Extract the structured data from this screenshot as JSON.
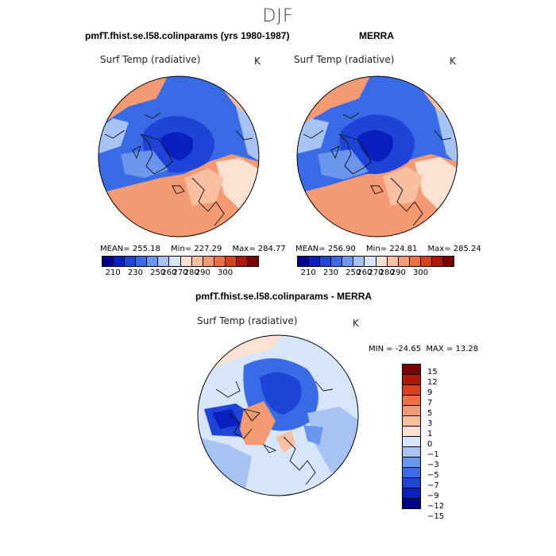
{
  "season": "DJF",
  "panels": {
    "model": {
      "title": "pmfT.fhist.se.l58.colinparams (yrs 1980-1987)",
      "variable": "Surf Temp (radiative)",
      "unit": "K",
      "mean_label": "MEAN=",
      "mean": "255.18",
      "min_label": "Min=",
      "min": "227.29",
      "max_label": "Max=",
      "max": "284.77"
    },
    "merra": {
      "title": "MERRA",
      "variable": "Surf Temp (radiative)",
      "unit": "K",
      "mean_label": "MEAN=",
      "mean": "256.90",
      "min_label": "Min=",
      "min": "224.81",
      "max_label": "Max=",
      "max": "285.24"
    },
    "diff": {
      "title": "pmfT.fhist.se.l58.colinparams - MERRA",
      "variable": "Surf Temp (radiative)",
      "unit": "K",
      "min_label": "MIN =",
      "min": "-24.65",
      "max_label": "MAX =",
      "max": "13.28"
    }
  },
  "abs_colorbar": {
    "colors": [
      "#00008b",
      "#0a1fbf",
      "#1f45d8",
      "#3a6be6",
      "#6a96ee",
      "#a6c3f3",
      "#d6e6f8",
      "#fbe1d1",
      "#f8bfa0",
      "#f39a72",
      "#ec6f45",
      "#d9411d",
      "#b01707",
      "#7c0000"
    ],
    "ticks": [
      "210",
      "230",
      "250",
      "260",
      "270",
      "280",
      "290",
      "300"
    ]
  },
  "diff_colorbar": {
    "colors": [
      "#7c0000",
      "#b01707",
      "#d9411d",
      "#ec6f45",
      "#f39a72",
      "#f8bfa0",
      "#fbe1d1",
      "#d6e6f8",
      "#a6c3f3",
      "#6a96ee",
      "#3a6be6",
      "#1f45d8",
      "#0a1fbf",
      "#00008b"
    ],
    "labels": [
      "15",
      "12",
      "9",
      "7",
      "5",
      "3",
      "1",
      "0",
      "−1",
      "−3",
      "−5",
      "−7",
      "−9",
      "−12",
      "−15"
    ]
  },
  "map_colors": {
    "ocean_warm": "#f39a72",
    "land_warm": "#ec6f45",
    "mid_light": "#fbe1d1",
    "pale_blue": "#d6e6f8",
    "light_blue": "#a6c3f3",
    "mid_blue": "#6a96ee",
    "blue": "#3a6be6",
    "deep_blue": "#1f45d8",
    "darker_blue": "#0a1fbf"
  }
}
